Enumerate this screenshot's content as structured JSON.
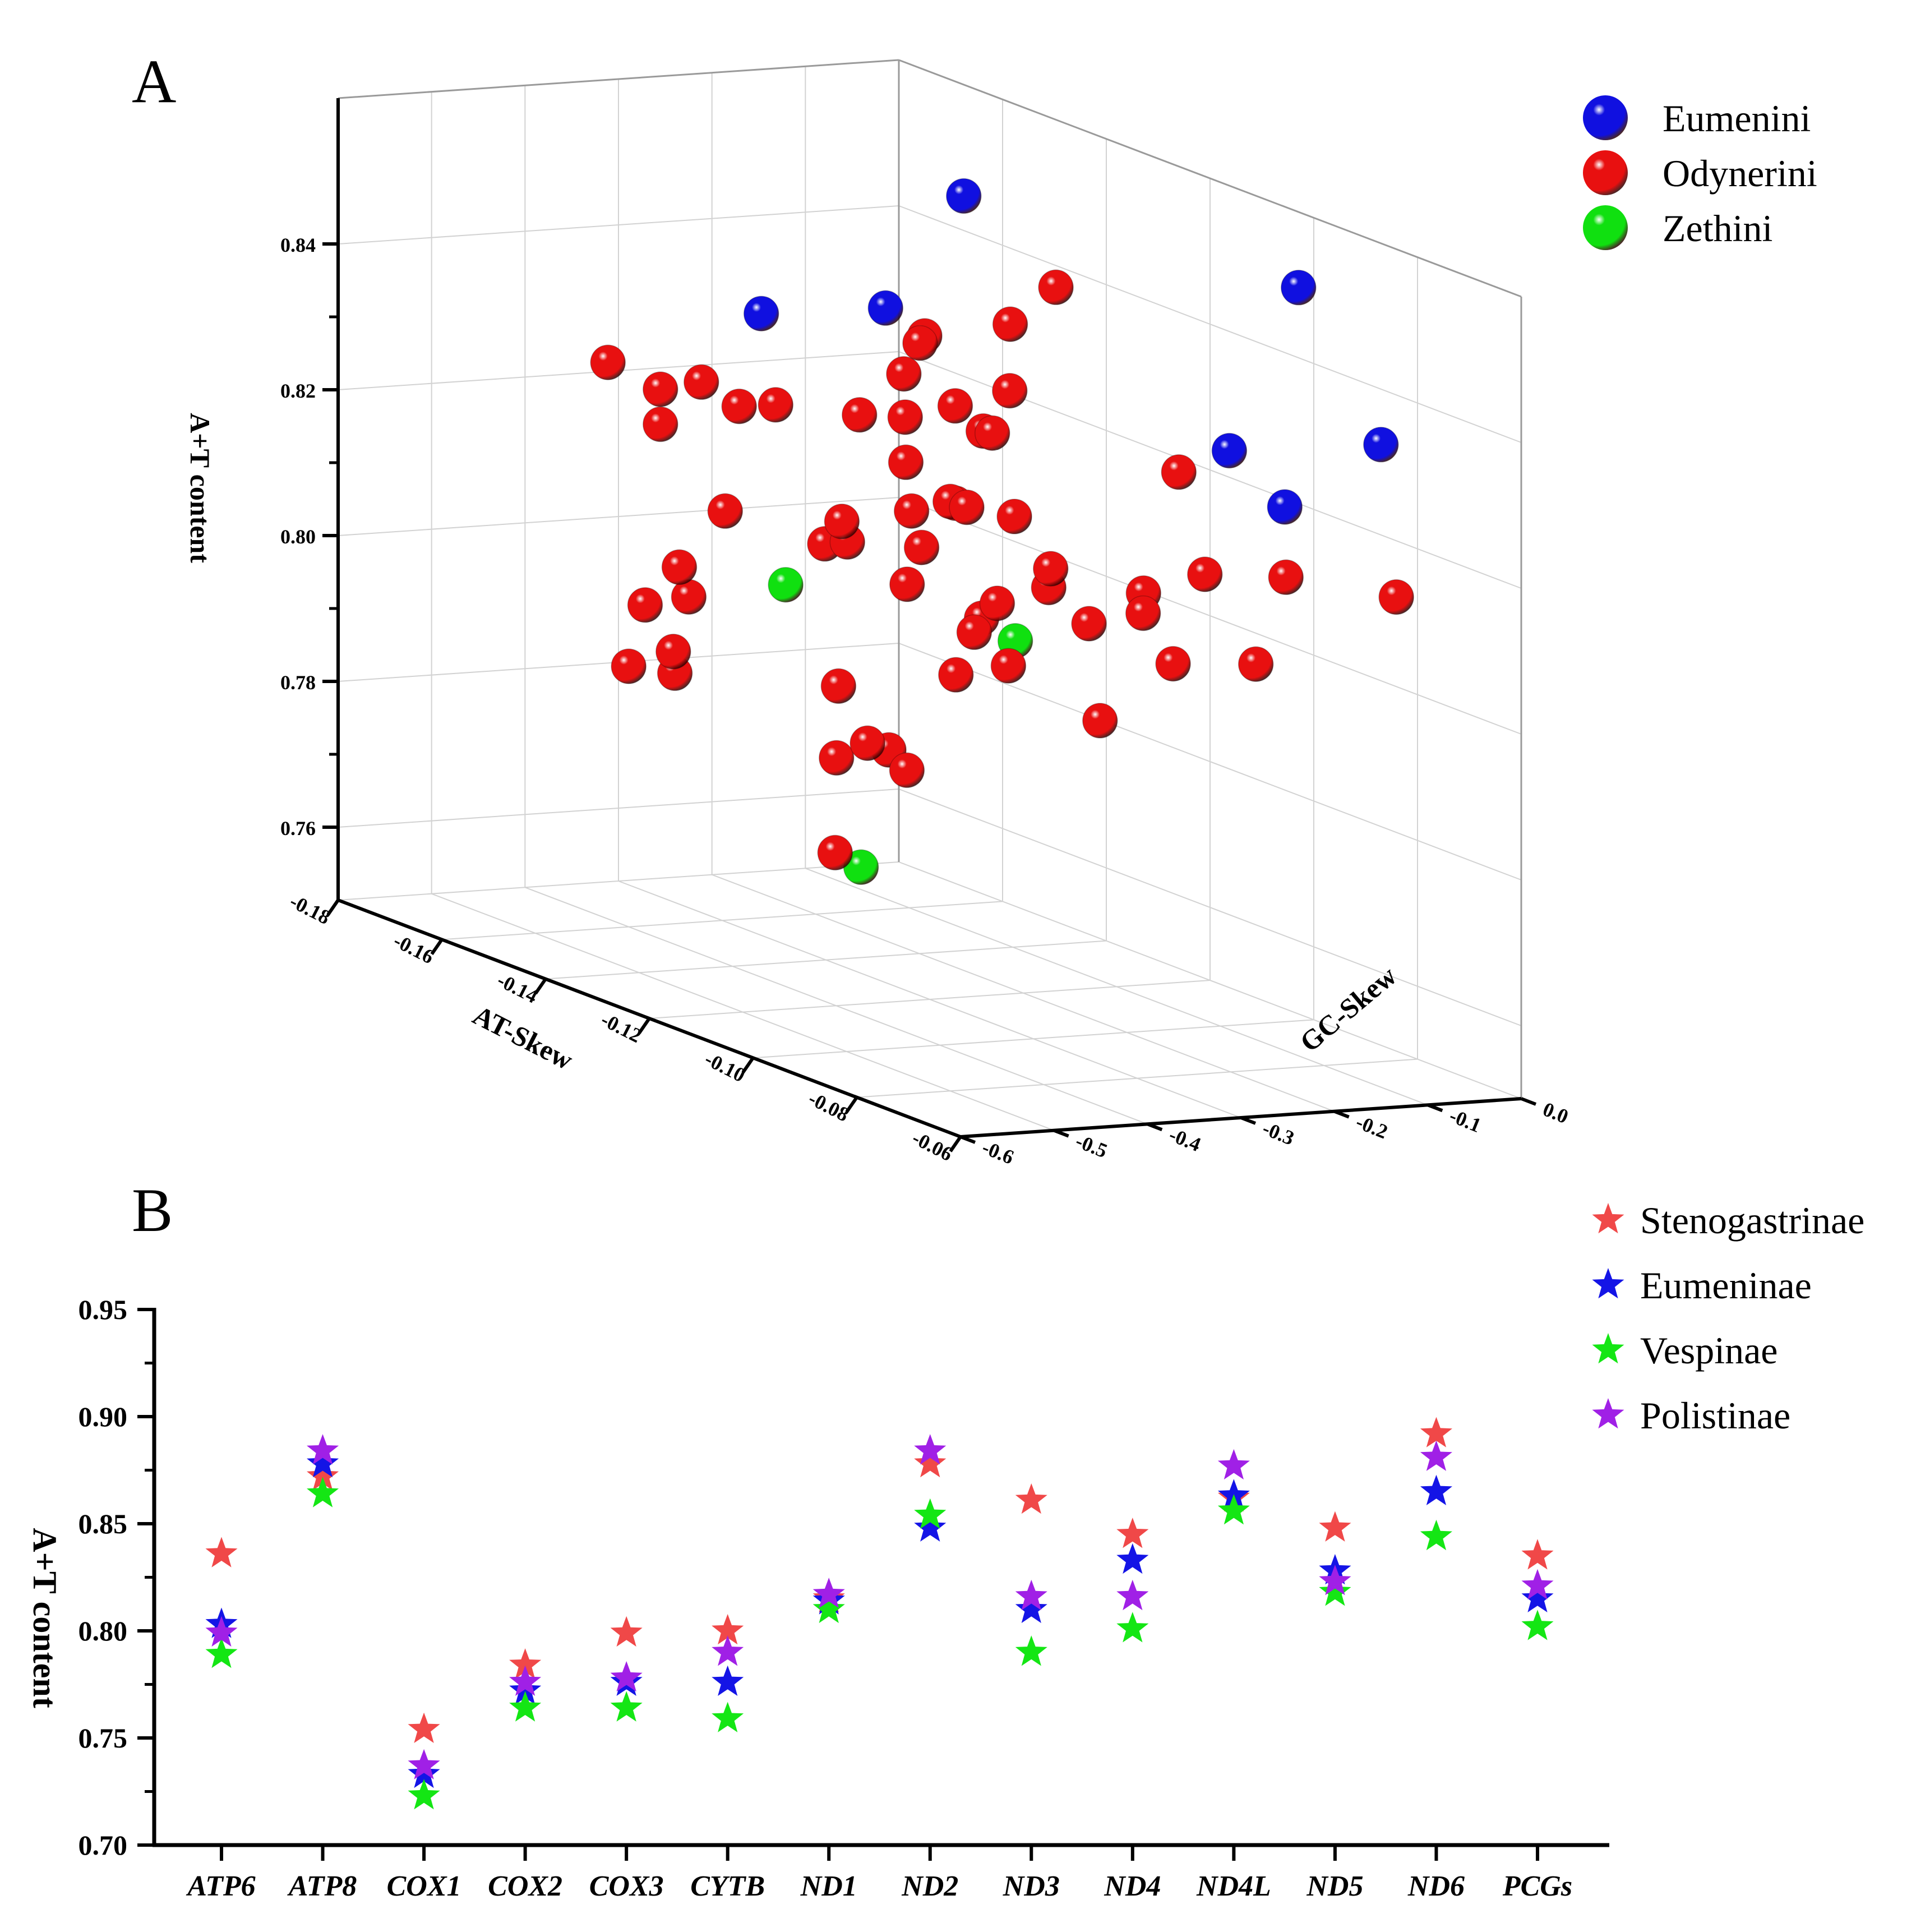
{
  "panel_a_label": "A",
  "panel_b_label": "B",
  "chart_data": [
    {
      "type": "scatter3d",
      "panel": "A",
      "xlabel": "AT-Skew",
      "ylabel": "GC-Skew",
      "zlabel": "A+T content",
      "xlim": [
        -0.18,
        -0.06
      ],
      "ylim": [
        -0.6,
        0.0
      ],
      "zlim": [
        0.75,
        0.86
      ],
      "x_ticks": [
        "-0.18",
        "-0.16",
        "-0.14",
        "-0.12",
        "-0.10",
        "-0.08",
        "-0.06"
      ],
      "y_ticks": [
        "0.0",
        "-0.1",
        "-0.2",
        "-0.3",
        "-0.4",
        "-0.5",
        "-0.6"
      ],
      "z_ticks": [
        "0.76",
        "0.78",
        "0.80",
        "0.82",
        "0.84"
      ],
      "legend": [
        {
          "name": "Eumenini",
          "color": "#1010e0"
        },
        {
          "name": "Odynerini",
          "color": "#e81010"
        },
        {
          "name": "Zethini",
          "color": "#10e010"
        }
      ],
      "series": [
        {
          "name": "Eumenini",
          "points": [
            [
              -0.161,
              -0.036,
              0.8468
            ],
            [
              -0.077,
              -0.144,
              0.8579
            ],
            [
              -0.082,
              -0.028,
              0.834
            ],
            [
              -0.097,
              -0.107,
              0.8298
            ],
            [
              -0.1,
              -0.031,
              0.8206
            ],
            [
              -0.164,
              -0.103,
              0.8312
            ],
            [
              -0.164,
              -0.236,
              0.8316
            ]
          ]
        },
        {
          "name": "Odynerini",
          "points": [
            [
              -0.109,
              -0.226,
              0.85
            ],
            [
              -0.107,
              -0.286,
              0.846
            ],
            [
              -0.117,
              -0.322,
              0.842
            ],
            [
              -0.115,
              -0.338,
              0.8417
            ],
            [
              -0.106,
              -0.292,
              0.8372
            ],
            [
              -0.109,
              -0.294,
              0.8306
            ],
            [
              -0.156,
              -0.265,
              0.8215
            ],
            [
              -0.158,
              -0.293,
              0.821
            ],
            [
              -0.157,
              -0.339,
              0.825
            ],
            [
              -0.134,
              -0.195,
              0.8267
            ],
            [
              -0.135,
              -0.243,
              0.8253
            ],
            [
              -0.143,
              -0.2,
              0.8287
            ],
            [
              -0.153,
              -0.192,
              0.8203
            ],
            [
              -0.13,
              -0.27,
              0.8207
            ],
            [
              -0.121,
              -0.267,
              0.8175
            ],
            [
              -0.123,
              -0.226,
              0.8265
            ],
            [
              -0.12,
              -0.278,
              0.8181
            ],
            [
              -0.117,
              -0.277,
              0.8181
            ],
            [
              -0.088,
              -0.211,
              0.8302
            ],
            [
              -0.074,
              -0.056,
              0.8155
            ],
            [
              -0.087,
              -0.102,
              0.8151
            ],
            [
              -0.166,
              -0.389,
              0.8257
            ],
            [
              -0.162,
              -0.355,
              0.8228
            ],
            [
              -0.162,
              -0.355,
              0.818
            ],
            [
              -0.128,
              -0.275,
              0.8146
            ],
            [
              -0.117,
              -0.226,
              0.8164
            ],
            [
              -0.101,
              -0.276,
              0.814
            ],
            [
              -0.103,
              -0.267,
              0.8108
            ],
            [
              -0.144,
              -0.279,
              0.8058
            ],
            [
              -0.129,
              -0.344,
              0.8135
            ],
            [
              -0.123,
              -0.292,
              0.8111
            ],
            [
              -0.122,
              -0.313,
              0.8065
            ],
            [
              -0.131,
              -0.327,
              0.81
            ],
            [
              -0.114,
              -0.261,
              0.8056
            ],
            [
              -0.101,
              -0.235,
              0.8061
            ],
            [
              -0.119,
              -0.25,
              0.8021
            ],
            [
              -0.105,
              -0.299,
              0.7998
            ],
            [
              -0.129,
              -0.222,
              0.7914
            ],
            [
              -0.158,
              -0.357,
              0.7995
            ],
            [
              -0.17,
              -0.327,
              0.7908
            ],
            [
              -0.157,
              -0.369,
              0.7883
            ],
            [
              -0.167,
              -0.258,
              0.8039
            ],
            [
              -0.165,
              -0.308,
              0.7931
            ],
            [
              -0.162,
              -0.389,
              0.7851
            ],
            [
              -0.163,
              -0.334,
              0.7834
            ],
            [
              -0.121,
              -0.361,
              0.7854
            ],
            [
              -0.125,
              -0.372,
              0.7824
            ],
            [
              -0.125,
              -0.316,
              0.783
            ],
            [
              -0.092,
              -0.227,
              0.8099
            ],
            [
              -0.09,
              -0.172,
              0.8153
            ],
            [
              -0.095,
              -0.21,
              0.8117
            ],
            [
              -0.081,
              -0.256,
              0.8062
            ],
            [
              -0.08,
              -0.173,
              0.8057
            ],
            [
              -0.117,
              -0.341,
              0.7826
            ],
            [
              -0.115,
              -0.429,
              0.7726
            ],
            [
              -0.121,
              -0.392,
              0.7935
            ],
            [
              -0.117,
              -0.269,
              0.8009
            ],
            [
              -0.085,
              -0.312,
              0.7978
            ]
          ]
        },
        {
          "name": "Zethini",
          "points": [
            [
              -0.119,
              -0.379,
              0.7691
            ],
            [
              -0.108,
              -0.275,
              0.8022
            ],
            [
              -0.142,
              -0.332,
              0.8012
            ]
          ]
        }
      ]
    },
    {
      "type": "scatter",
      "panel": "B",
      "marker": "star",
      "xlabel": "",
      "ylabel": "A+T content",
      "ylim": [
        0.7,
        0.95
      ],
      "y_ticks": [
        "0.70",
        "0.75",
        "0.80",
        "0.85",
        "0.90",
        "0.95"
      ],
      "categories": [
        "ATP6",
        "ATP8",
        "COX1",
        "COX2",
        "COX3",
        "CYTB",
        "ND1",
        "ND2",
        "ND3",
        "ND4",
        "ND4L",
        "ND5",
        "ND6",
        "PCGs"
      ],
      "series": [
        {
          "name": "Stenogastrinae",
          "color": "#f04848",
          "values": [
            0.836,
            0.872,
            0.754,
            0.784,
            0.799,
            0.8,
            0.815,
            0.878,
            0.861,
            0.845,
            0.862,
            0.848,
            0.892,
            0.835
          ]
        },
        {
          "name": "Eumeninae",
          "color": "#1414e6",
          "values": [
            0.803,
            0.878,
            0.733,
            0.772,
            0.776,
            0.776,
            0.814,
            0.848,
            0.81,
            0.833,
            0.863,
            0.828,
            0.865,
            0.815
          ]
        },
        {
          "name": "Vespinae",
          "color": "#14e614",
          "values": [
            0.789,
            0.864,
            0.723,
            0.764,
            0.764,
            0.759,
            0.81,
            0.854,
            0.79,
            0.801,
            0.856,
            0.818,
            0.844,
            0.802
          ]
        },
        {
          "name": "Polistinae",
          "color": "#a020e6",
          "values": [
            0.799,
            0.884,
            0.737,
            0.776,
            0.778,
            0.79,
            0.817,
            0.884,
            0.816,
            0.816,
            0.877,
            0.823,
            0.881,
            0.821
          ]
        }
      ]
    }
  ]
}
